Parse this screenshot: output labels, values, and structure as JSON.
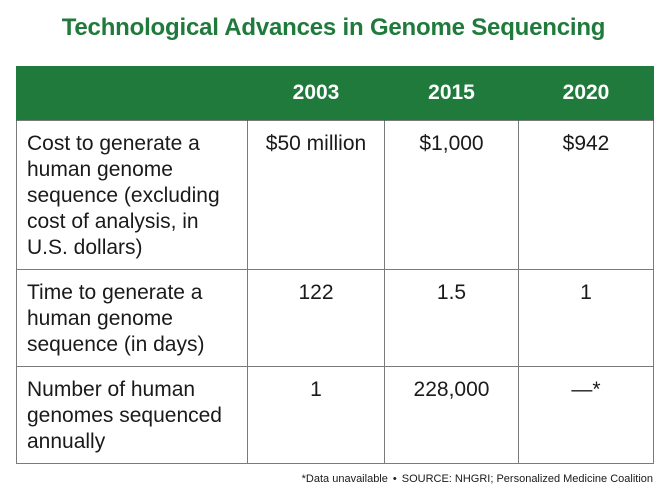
{
  "title": "Technological Advances in Genome Sequencing",
  "table": {
    "columns": [
      "",
      "2003",
      "2015",
      "2020"
    ],
    "rows": [
      {
        "label": "Cost to generate a human genome sequence (excluding cost of analysis, in U.S. dollars)",
        "values": [
          "$50 million",
          "$1,000",
          "$942"
        ]
      },
      {
        "label": "Time to generate a human genome sequence (in days)",
        "values": [
          "122",
          "1.5",
          "1"
        ]
      },
      {
        "label": "Number of human genomes sequenced annually",
        "values": [
          "1",
          "228,000",
          "—*"
        ]
      }
    ]
  },
  "footnote": {
    "note": "*Data unavailable",
    "separator": "•",
    "source": "SOURCE: NHGRI; Personalized Medicine Coalition"
  },
  "colors": {
    "header_bg": "#1f7a3c",
    "title": "#1f7a3c",
    "border": "#7a7a7a"
  }
}
